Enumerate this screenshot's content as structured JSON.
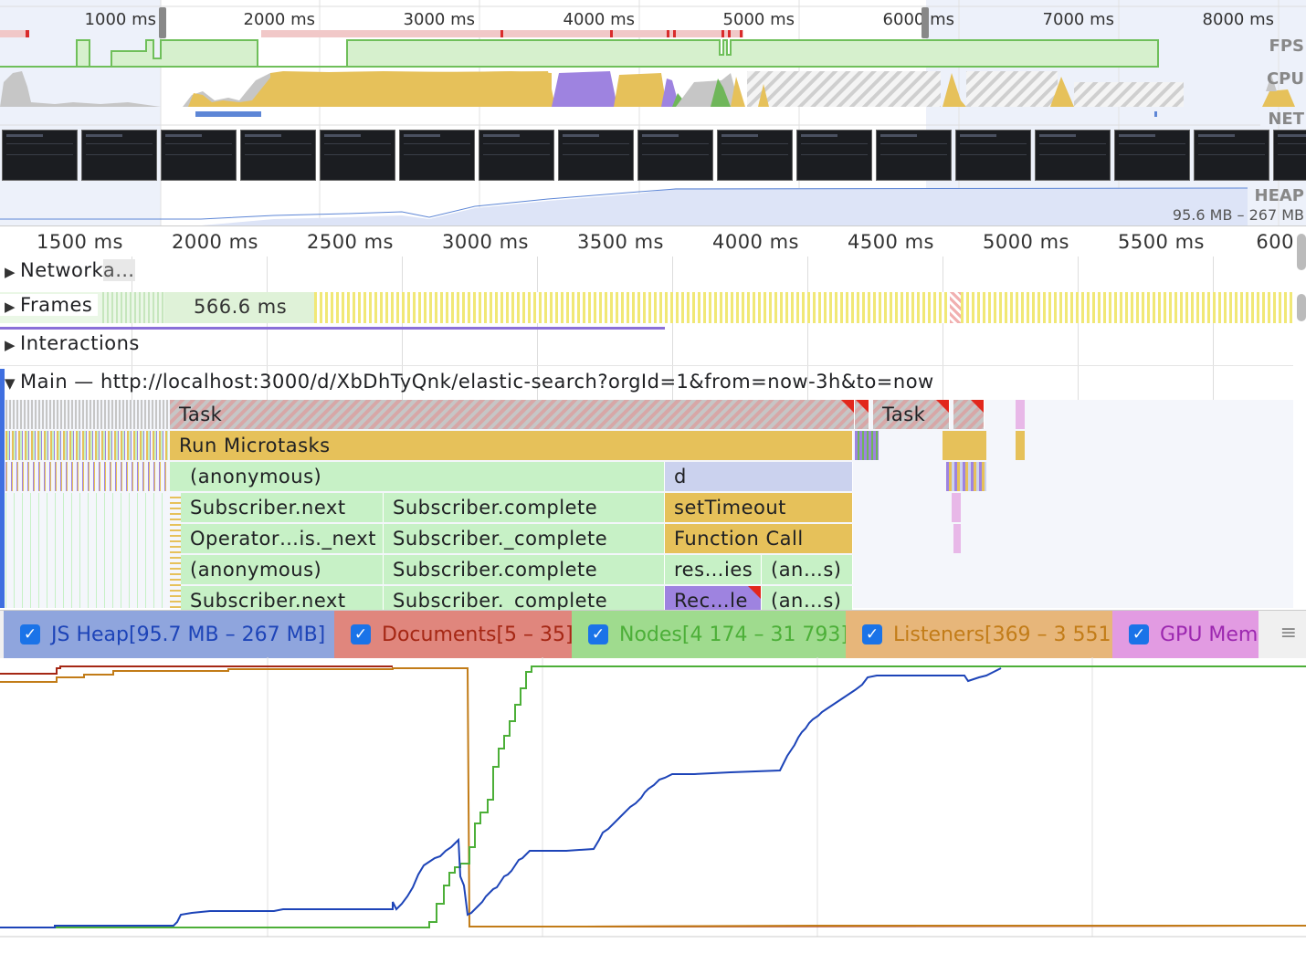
{
  "overview": {
    "ticks": [
      "1000 ms",
      "2000 ms",
      "3000 ms",
      "4000 ms",
      "5000 ms",
      "6000 ms",
      "7000 ms",
      "8000 ms"
    ],
    "lane_labels": {
      "fps": "FPS",
      "cpu": "CPU",
      "net": "NET",
      "heap": "HEAP"
    },
    "heap_range": "95.6 MB – 267 MB",
    "cpu_colors": {
      "scripting": "#e6c15a",
      "rendering": "#9e83e0",
      "painting": "#6fb65a",
      "system": "#c6c6c6"
    },
    "fps_color": "#6fbf5a"
  },
  "ruler": {
    "ticks": [
      "1500 ms",
      "2000 ms",
      "2500 ms",
      "3000 ms",
      "3500 ms",
      "4000 ms",
      "4500 ms",
      "5000 ms",
      "5500 ms",
      "600"
    ]
  },
  "tracks": {
    "network": "Network",
    "network_overlay": "a…",
    "frames": "Frames",
    "frame_duration": "566.6 ms",
    "interactions": "Interactions",
    "main": "Main — http://localhost:3000/d/XbDhTyQnk/elastic-search?orgId=1&from=now-3h&to=now"
  },
  "flame": {
    "task1": "Task",
    "task2": "Task",
    "run_microtasks": "Run Microtasks",
    "l3a": "(anonymous)",
    "l3b": "d",
    "l4a": "Subscriber.next",
    "l4b": "Subscriber.complete",
    "l4c": "setTimeout",
    "l5a": "Operator…is._next",
    "l5b": "Subscriber._complete",
    "l5c": "Function Call",
    "l6a": "(anonymous)",
    "l6b": "Subscriber.complete",
    "l6c": "res…ies",
    "l6d": "(an…s)",
    "l7a": "Subscriber.next",
    "l7b": "Subscriber._complete",
    "l7c": "Rec…le",
    "l7d": "(an…s)"
  },
  "memory": {
    "checkbox_glyph": "✓",
    "menu_glyph": "≡",
    "counters": [
      {
        "name": "JS Heap",
        "range": "[95.7 MB – 267 MB]",
        "bg": "#8fa5dd",
        "color": "#1d44b8"
      },
      {
        "name": "Documents",
        "range": "[5 – 35]",
        "bg": "#e0867d",
        "color": "#a52714"
      },
      {
        "name": "Nodes",
        "range": "[4 174 – 31 793]",
        "bg": "#9fdb8e",
        "color": "#4caf38"
      },
      {
        "name": "Listeners",
        "range": "[369 – 3 551]",
        "bg": "#e7b67a",
        "color": "#c27c18"
      },
      {
        "name": "GPU Mem",
        "range": "",
        "bg": "#e29be2",
        "color": "#9c27b0"
      }
    ]
  }
}
